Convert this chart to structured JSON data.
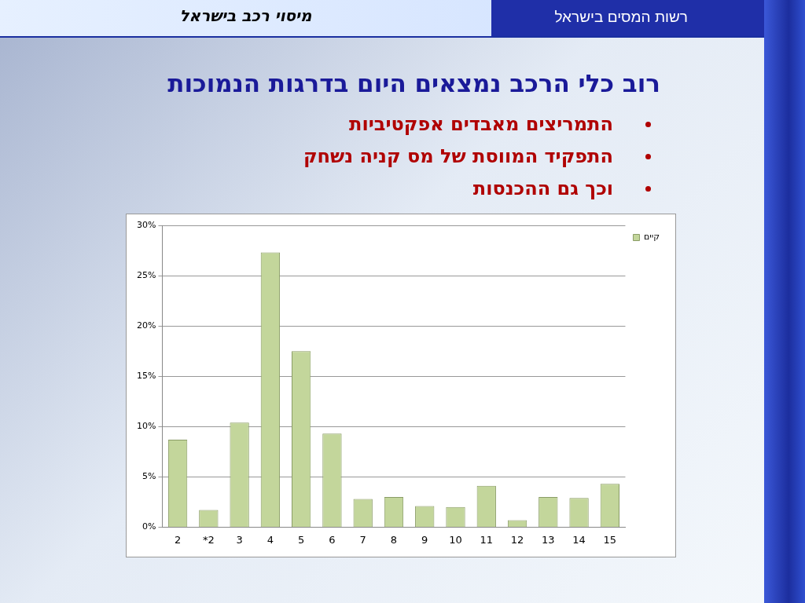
{
  "chart_data": {
    "type": "bar",
    "title": "רוב כלי הרכב נמצאים היום בדרגות הנמוכות",
    "annotations": [
      "מיסוי רכב בישראל",
      "רשות המסים בישראל",
      "התמריצים מאבדים אפקטיביות",
      "התפקיד המווסת של מס קניה נשחק",
      "וכך גם ההכנסות"
    ],
    "categories": [
      "2",
      "*2",
      "3",
      "4",
      "5",
      "6",
      "7",
      "8",
      "9",
      "10",
      "11",
      "12",
      "13",
      "14",
      "15"
    ],
    "series": [
      {
        "name": "קיים",
        "color": "#c3d69b",
        "values": [
          8.7,
          1.7,
          10.4,
          27.3,
          17.5,
          9.3,
          2.8,
          3.0,
          2.1,
          2.0,
          4.1,
          0.7,
          3.0,
          2.9,
          4.3
        ]
      }
    ],
    "ylim": [
      0,
      30
    ],
    "yticks": [
      {
        "value": 0,
        "label": "0%"
      },
      {
        "value": 5,
        "label": "5%"
      },
      {
        "value": 10,
        "label": "10%"
      },
      {
        "value": 15,
        "label": "15%"
      },
      {
        "value": 20,
        "label": "20%"
      },
      {
        "value": 25,
        "label": "25%"
      },
      {
        "value": 30,
        "label": "30%"
      }
    ],
    "grid": "y",
    "legend": "top right"
  }
}
